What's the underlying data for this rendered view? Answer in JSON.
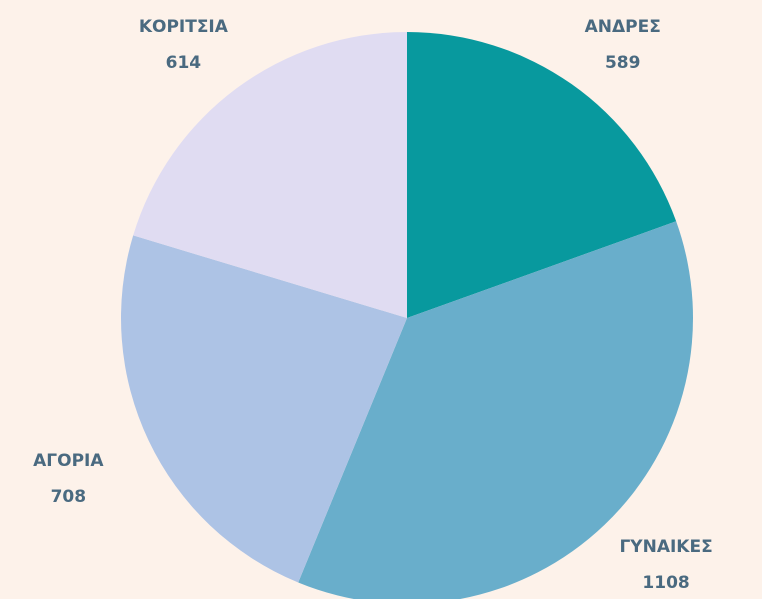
{
  "chart_data": {
    "type": "pie",
    "categories": [
      "ΑΝΔΡΕΣ",
      "ΓΥΝΑΙΚΕΣ",
      "ΑΓΟΡΙΑ",
      "ΚΟΡΙΤΣΙΑ"
    ],
    "values": [
      589,
      1108,
      708,
      614
    ],
    "colors": [
      "#08999e",
      "#69aecb",
      "#adc3e5",
      "#e0dcf2"
    ]
  }
}
